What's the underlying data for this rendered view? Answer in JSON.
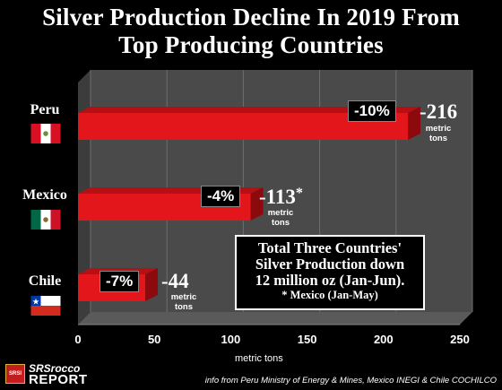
{
  "title_line1": "Silver Production Decline In 2019 From",
  "title_line2": "Top Producing Countries",
  "chart_data": {
    "type": "bar",
    "orientation": "horizontal",
    "categories": [
      "Peru",
      "Mexico",
      "Chile"
    ],
    "values": [
      216,
      113,
      44
    ],
    "value_labels": [
      "-216",
      "-113",
      "-44"
    ],
    "value_suffix": [
      "",
      "*",
      ""
    ],
    "value_unit": "metric tons",
    "percent_labels": [
      "-10%",
      "-4%",
      "-7%"
    ],
    "xlim": [
      0,
      250
    ],
    "x_ticks": [
      0,
      50,
      100,
      150,
      200,
      250
    ],
    "xlabel": "metric tons",
    "grid": true,
    "colors": {
      "bar": "#e3161c",
      "bar_dark": "#8c0a0d",
      "floor": "#5a5a5a",
      "wall": "#4a4a4a"
    }
  },
  "note": {
    "line1": "Total Three Countries'",
    "line2": "Silver Production down",
    "line3": "12 million oz (Jan-Jun).",
    "line4": "* Mexico (Jan-May)"
  },
  "logo": {
    "badge": "SRSI",
    "line1": "SRSrocco",
    "line2": "REPORT"
  },
  "source": "info from Peru Ministry of Energy & Mines, Mexico INEGI & Chile COCHILCO"
}
